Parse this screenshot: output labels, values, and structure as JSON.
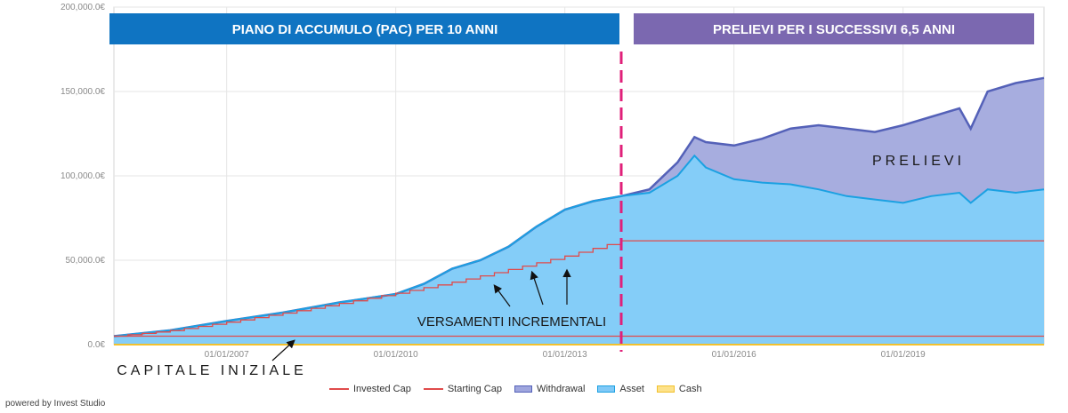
{
  "chart_data": {
    "type": "area",
    "y_ticks": [
      "200,000.0€",
      "150,000.0€",
      "100,000.0€",
      "50,000.0€",
      "0.0€"
    ],
    "x_ticks": [
      "01/01/2007",
      "01/01/2010",
      "01/01/2013",
      "01/01/2016",
      "01/01/2019"
    ],
    "ylim": [
      0,
      200000
    ],
    "xlim": [
      2005.0,
      2021.5
    ],
    "split_year": 2014.0,
    "grid": true,
    "legend_position": "bottom",
    "series": [
      {
        "name": "Withdrawal",
        "color": "#5461b8",
        "points": [
          [
            2005.0,
            5000
          ],
          [
            2006.0,
            8500
          ],
          [
            2007.0,
            14000
          ],
          [
            2008.0,
            19000
          ],
          [
            2009.0,
            25000
          ],
          [
            2009.5,
            27500
          ],
          [
            2010.0,
            30000
          ],
          [
            2010.5,
            36000
          ],
          [
            2011.0,
            45000
          ],
          [
            2011.5,
            50000
          ],
          [
            2012.0,
            58000
          ],
          [
            2012.5,
            70000
          ],
          [
            2013.0,
            80000
          ],
          [
            2013.5,
            85000
          ],
          [
            2014.0,
            88000
          ],
          [
            2014.5,
            92000
          ],
          [
            2015.0,
            108000
          ],
          [
            2015.2,
            118000
          ],
          [
            2015.3,
            123000
          ],
          [
            2015.5,
            120000
          ],
          [
            2016.0,
            118000
          ],
          [
            2016.5,
            122000
          ],
          [
            2017.0,
            128000
          ],
          [
            2017.5,
            130000
          ],
          [
            2018.0,
            128000
          ],
          [
            2018.5,
            126000
          ],
          [
            2019.0,
            130000
          ],
          [
            2019.5,
            135000
          ],
          [
            2020.0,
            140000
          ],
          [
            2020.2,
            128000
          ],
          [
            2020.5,
            150000
          ],
          [
            2021.0,
            155000
          ],
          [
            2021.5,
            158000
          ]
        ]
      },
      {
        "name": "Asset",
        "color": "#1ba1e2",
        "points": [
          [
            2005.0,
            5000
          ],
          [
            2006.0,
            8500
          ],
          [
            2007.0,
            14000
          ],
          [
            2008.0,
            19000
          ],
          [
            2009.0,
            25000
          ],
          [
            2009.5,
            27500
          ],
          [
            2010.0,
            30000
          ],
          [
            2010.5,
            36000
          ],
          [
            2011.0,
            45000
          ],
          [
            2011.5,
            50000
          ],
          [
            2012.0,
            58000
          ],
          [
            2012.5,
            70000
          ],
          [
            2013.0,
            80000
          ],
          [
            2013.5,
            85000
          ],
          [
            2014.0,
            88000
          ],
          [
            2014.5,
            90000
          ],
          [
            2015.0,
            100000
          ],
          [
            2015.2,
            108000
          ],
          [
            2015.3,
            112000
          ],
          [
            2015.5,
            105000
          ],
          [
            2016.0,
            98000
          ],
          [
            2016.5,
            96000
          ],
          [
            2017.0,
            95000
          ],
          [
            2017.5,
            92000
          ],
          [
            2018.0,
            88000
          ],
          [
            2018.5,
            86000
          ],
          [
            2019.0,
            84000
          ],
          [
            2019.5,
            88000
          ],
          [
            2020.0,
            90000
          ],
          [
            2020.2,
            84000
          ],
          [
            2020.5,
            92000
          ],
          [
            2021.0,
            90000
          ],
          [
            2021.5,
            92000
          ]
        ]
      },
      {
        "name": "Invested Cap",
        "color": "#e04b4b",
        "points": [
          [
            2005.0,
            5000
          ],
          [
            2006.0,
            8300
          ],
          [
            2007.0,
            13300
          ],
          [
            2008.0,
            18700
          ],
          [
            2009.0,
            24400
          ],
          [
            2010.0,
            30500
          ],
          [
            2011.0,
            37000
          ],
          [
            2012.0,
            44500
          ],
          [
            2013.0,
            52500
          ],
          [
            2014.0,
            61500
          ],
          [
            2021.5,
            61500
          ]
        ]
      },
      {
        "name": "Starting Cap",
        "color": "#e04b4b",
        "points": [
          [
            2005.0,
            5000
          ],
          [
            2021.5,
            5000
          ]
        ]
      },
      {
        "name": "Cash",
        "color": "#f2c12e",
        "points": [
          [
            2005.0,
            0
          ],
          [
            2021.5,
            0
          ]
        ]
      }
    ],
    "banners": [
      "PIANO DI ACCUMULO (PAC) PER 10 ANNI",
      "PRELIEVI PER I SUCCESSIVI 6,5 ANNI"
    ],
    "annotations": [
      "PRELIEVI",
      "VERSAMENTI INCREMENTALI",
      "CAPITALE INIZIALE"
    ]
  },
  "legend": {
    "items": [
      {
        "label": "Invested Cap",
        "kind": "line",
        "color": "#e04b4b"
      },
      {
        "label": "Starting Cap",
        "kind": "line",
        "color": "#e04b4b"
      },
      {
        "label": "Withdrawal",
        "kind": "box",
        "color": "#9fa6de",
        "border": "#5461b8"
      },
      {
        "label": "Asset",
        "kind": "box",
        "color": "#80c9f7",
        "border": "#1ba1e2"
      },
      {
        "label": "Cash",
        "kind": "box",
        "color": "#fde28a",
        "border": "#f2c12e"
      }
    ]
  },
  "footer": "powered by Invest Studio"
}
